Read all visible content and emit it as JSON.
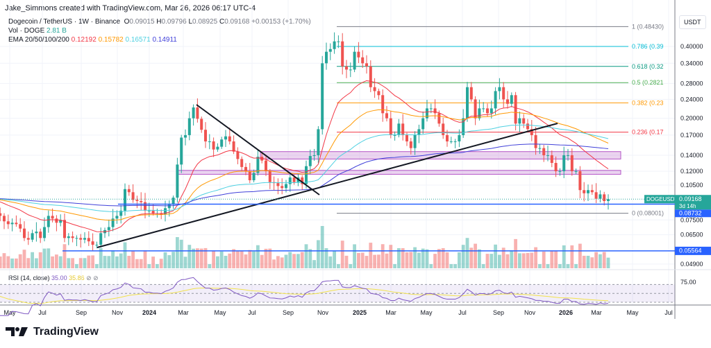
{
  "credit": "Jake_Simmons created with TradingView.com, Mar 26, 2026 06:17 UTC-4",
  "legend": {
    "symbol": "Dogecoin / TetherUS · 1W · Binance",
    "o_label": "O",
    "o": "0.09015",
    "h_label": "H",
    "h": "0.09796",
    "l_label": "L",
    "l": "0.08925",
    "c_label": "C",
    "c": "0.09168",
    "change": "+0.00153 (+1.70%)",
    "vol_label": "Vol · DOGE",
    "vol": "2.81 B",
    "ema_label": "EMA 20/50/100/200",
    "ema20": "0.12192",
    "ema50": "0.15782",
    "ema100": "0.16571",
    "ema200": "0.14911"
  },
  "rsi": {
    "label": "RSI (14, close)",
    "value": "35.00",
    "ma": "35.86",
    "level": "75.00"
  },
  "currency": "USDT",
  "footer": {
    "brand": "TradingView"
  },
  "colors": {
    "up": "#26a69a",
    "down": "#ef5350",
    "ema20": "#f23645",
    "ema50": "#ff9800",
    "ema100": "#4dd0e1",
    "ema200": "#3f3fd9",
    "rsi": "#7e57c2",
    "rsima": "#f2e24a",
    "hline": "#2962ff",
    "zone": "#ce93d8"
  },
  "chart_data": {
    "type": "candlestick",
    "interval": "1W",
    "scale": "log",
    "ylim": [
      0.047,
      0.52
    ],
    "grid": true,
    "x_ticks": [
      "May",
      "Jul",
      "Sep",
      "Nov",
      "2024",
      "Mar",
      "May",
      "Jul",
      "Sep",
      "Nov",
      "2025",
      "Mar",
      "May",
      "Jul",
      "Sep",
      "Nov",
      "2026",
      "Mar",
      "May",
      "Jul"
    ],
    "y_ticks": [
      "0.40000",
      "0.34000",
      "0.28000",
      "0.24000",
      "0.20000",
      "0.17000",
      "0.14000",
      "0.12000",
      "0.10500",
      "0.07500",
      "0.06500",
      "0.04900"
    ],
    "closes": [
      0.084,
      0.08,
      0.078,
      0.074,
      0.072,
      0.073,
      0.072,
      0.069,
      0.063,
      0.062,
      0.066,
      0.067,
      0.063,
      0.07,
      0.078,
      0.076,
      0.073,
      0.075,
      0.063,
      0.064,
      0.063,
      0.063,
      0.062,
      0.063,
      0.061,
      0.059,
      0.059,
      0.066,
      0.068,
      0.07,
      0.076,
      0.078,
      0.082,
      0.101,
      0.098,
      0.091,
      0.09,
      0.089,
      0.082,
      0.082,
      0.08,
      0.08,
      0.079,
      0.084,
      0.087,
      0.093,
      0.128,
      0.166,
      0.17,
      0.2,
      0.222,
      0.199,
      0.179,
      0.16,
      0.16,
      0.148,
      0.152,
      0.163,
      0.168,
      0.16,
      0.145,
      0.135,
      0.125,
      0.12,
      0.11,
      0.118,
      0.138,
      0.133,
      0.12,
      0.108,
      0.107,
      0.104,
      0.102,
      0.106,
      0.113,
      0.108,
      0.113,
      0.106,
      0.126,
      0.139,
      0.14,
      0.18,
      0.34,
      0.38,
      0.39,
      0.42,
      0.42,
      0.33,
      0.32,
      0.32,
      0.38,
      0.36,
      0.34,
      0.33,
      0.27,
      0.26,
      0.25,
      0.21,
      0.2,
      0.17,
      0.17,
      0.19,
      0.17,
      0.16,
      0.15,
      0.17,
      0.18,
      0.2,
      0.22,
      0.22,
      0.21,
      0.19,
      0.17,
      0.16,
      0.16,
      0.16,
      0.17,
      0.2,
      0.27,
      0.24,
      0.2,
      0.22,
      0.22,
      0.21,
      0.22,
      0.26,
      0.27,
      0.24,
      0.23,
      0.25,
      0.19,
      0.2,
      0.19,
      0.18,
      0.17,
      0.15,
      0.15,
      0.14,
      0.14,
      0.13,
      0.12,
      0.12,
      0.14,
      0.14,
      0.12,
      0.12,
      0.1,
      0.097,
      0.1,
      0.098,
      0.092,
      0.096,
      0.09,
      0.09168
    ],
    "fib_levels": [
      {
        "label": "1 (0.48430)",
        "price": 0.4843,
        "color": "#787b86"
      },
      {
        "label": "0.786 (0.39",
        "price": 0.4,
        "color": "#00bcd4"
      },
      {
        "label": "0.618 (0.32",
        "price": 0.33,
        "color": "#089981"
      },
      {
        "label": "0.5 (0.2821",
        "price": 0.2821,
        "color": "#4caf50"
      },
      {
        "label": "0.382 (0.23",
        "price": 0.232,
        "color": "#ff9800"
      },
      {
        "label": "0.236 (0.17",
        "price": 0.175,
        "color": "#f23645"
      },
      {
        "label": "0 (0.08001)",
        "price": 0.08001,
        "color": "#787b86"
      }
    ],
    "horizontal_lines": [
      {
        "label": "0.08732",
        "price": 0.08732
      },
      {
        "label": "0.05564",
        "price": 0.05564
      }
    ],
    "last_price": {
      "symbol": "DOGEUSDT",
      "price": "0.09168",
      "countdown": "3d 14h"
    }
  }
}
